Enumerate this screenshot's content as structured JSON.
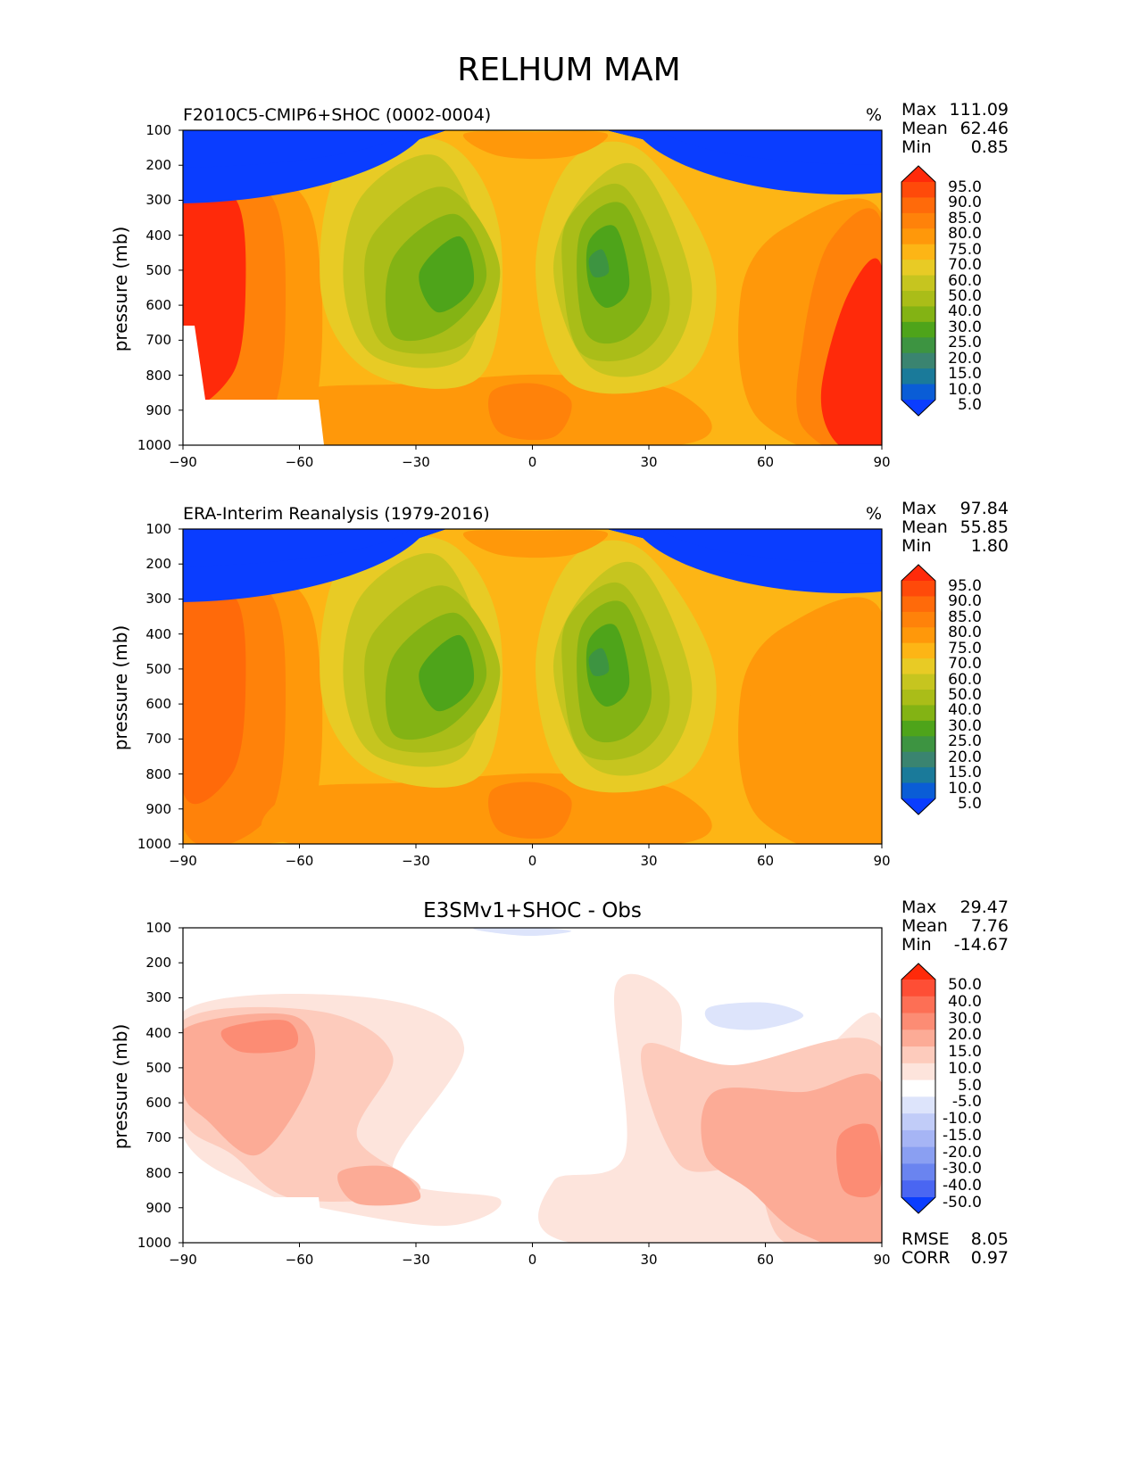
{
  "figure_title": "RELHUM MAM",
  "chart_data": [
    {
      "type": "heatmap",
      "title": "F2010C5-CMIP6+SHOC (0002-0004)",
      "units": "%",
      "ylabel": "pressure (mb)",
      "xlabel": "",
      "x_ticks": [
        "−90",
        "−60",
        "−30",
        "0",
        "30",
        "60",
        "90"
      ],
      "y_ticks": [
        "100",
        "200",
        "300",
        "400",
        "500",
        "600",
        "700",
        "800",
        "900",
        "1000"
      ],
      "xlim": [
        -90,
        90
      ],
      "ylim": [
        1000,
        100
      ],
      "stats": {
        "Max": "111.09",
        "Mean": "62.46",
        "Min": "0.85"
      },
      "colorbar_levels": [
        "95.0",
        "90.0",
        "85.0",
        "80.0",
        "75.0",
        "70.0",
        "60.0",
        "50.0",
        "40.0",
        "30.0",
        "25.0",
        "20.0",
        "15.0",
        "10.0",
        "5.0"
      ],
      "colorbar_colors": [
        "#ff2a0a",
        "#ff4a0a",
        "#ff6a0a",
        "#ff820a",
        "#ff980a",
        "#fdb515",
        "#e8cb25",
        "#c6c51f",
        "#aabd18",
        "#83b314",
        "#4ea41a",
        "#3d9441",
        "#3a8470",
        "#1a7a9a",
        "#0a5dd6",
        "#0a3dff"
      ]
    },
    {
      "type": "heatmap",
      "title": "ERA-Interim Reanalysis (1979-2016)",
      "units": "%",
      "ylabel": "pressure (mb)",
      "xlabel": "",
      "x_ticks": [
        "−90",
        "−60",
        "−30",
        "0",
        "30",
        "60",
        "90"
      ],
      "y_ticks": [
        "100",
        "200",
        "300",
        "400",
        "500",
        "600",
        "700",
        "800",
        "900",
        "1000"
      ],
      "xlim": [
        -90,
        90
      ],
      "ylim": [
        1000,
        100
      ],
      "stats": {
        "Max": "97.84",
        "Mean": "55.85",
        "Min": "1.80"
      },
      "colorbar_levels": [
        "95.0",
        "90.0",
        "85.0",
        "80.0",
        "75.0",
        "70.0",
        "60.0",
        "50.0",
        "40.0",
        "30.0",
        "25.0",
        "20.0",
        "15.0",
        "10.0",
        "5.0"
      ],
      "colorbar_colors": [
        "#ff2a0a",
        "#ff4a0a",
        "#ff6a0a",
        "#ff820a",
        "#ff980a",
        "#fdb515",
        "#e8cb25",
        "#c6c51f",
        "#aabd18",
        "#83b314",
        "#4ea41a",
        "#3d9441",
        "#3a8470",
        "#1a7a9a",
        "#0a5dd6",
        "#0a3dff"
      ]
    },
    {
      "type": "heatmap",
      "title": "E3SMv1+SHOC - Obs",
      "units": "",
      "ylabel": "pressure (mb)",
      "xlabel": "",
      "x_ticks": [
        "−90",
        "−60",
        "−30",
        "0",
        "30",
        "60",
        "90"
      ],
      "y_ticks": [
        "100",
        "200",
        "300",
        "400",
        "500",
        "600",
        "700",
        "800",
        "900",
        "1000"
      ],
      "xlim": [
        -90,
        90
      ],
      "ylim": [
        1000,
        100
      ],
      "stats": {
        "Max": "29.47",
        "Mean": "7.76",
        "Min": "-14.67"
      },
      "metrics": {
        "RMSE": "8.05",
        "CORR": "0.97"
      },
      "colorbar_levels": [
        "50.0",
        "40.0",
        "30.0",
        "20.0",
        "15.0",
        "10.0",
        "5.0",
        "-5.0",
        "-10.0",
        "-15.0",
        "-20.0",
        "-30.0",
        "-40.0",
        "-50.0"
      ],
      "colorbar_colors": [
        "#ff2a0a",
        "#fe4e35",
        "#fd6f55",
        "#fc8c74",
        "#fcab96",
        "#fdcbbc",
        "#fde4dc",
        "#ffffff",
        "#dde4fb",
        "#c1ccf8",
        "#a6b5f5",
        "#8a9ff2",
        "#6a84f0",
        "#4a66f2",
        "#0a3dff"
      ]
    }
  ]
}
